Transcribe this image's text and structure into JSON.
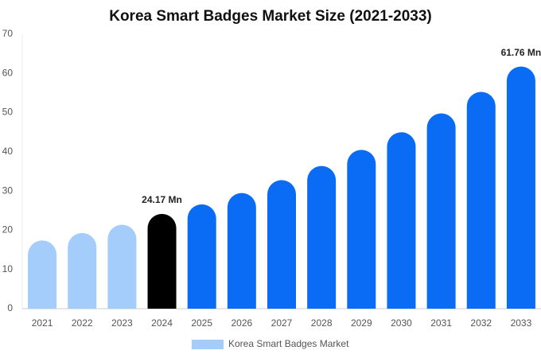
{
  "chart_data": {
    "type": "bar",
    "title": "Korea Smart Badges Market Size (2021-2033)",
    "categories": [
      "2021",
      "2022",
      "2023",
      "2024",
      "2025",
      "2026",
      "2027",
      "2028",
      "2029",
      "2030",
      "2031",
      "2032",
      "2033"
    ],
    "series": [
      {
        "name": "Korea Smart Badges Market",
        "color": "#a4cdfc",
        "values": [
          17.4,
          19.3,
          21.4,
          24.17,
          26.6,
          29.5,
          32.8,
          36.4,
          40.5,
          45.0,
          49.8,
          55.3,
          61.76
        ],
        "value_labels": [
          null,
          null,
          null,
          "24.17 Mn",
          null,
          null,
          null,
          null,
          null,
          null,
          null,
          null,
          "61.76 Mn"
        ],
        "colors": [
          "#a4cdfc",
          "#a4cdfc",
          "#a4cdfc",
          "#000000",
          "#0a6cf5",
          "#0a6cf5",
          "#0a6cf5",
          "#0a6cf5",
          "#0a6cf5",
          "#0a6cf5",
          "#0a6cf5",
          "#0a6cf5",
          "#0a6cf5"
        ]
      }
    ],
    "ylim": [
      0,
      70
    ],
    "yticks": [
      0,
      10,
      20,
      30,
      40,
      50,
      60,
      70
    ],
    "grid": false,
    "legend": "bottom"
  }
}
